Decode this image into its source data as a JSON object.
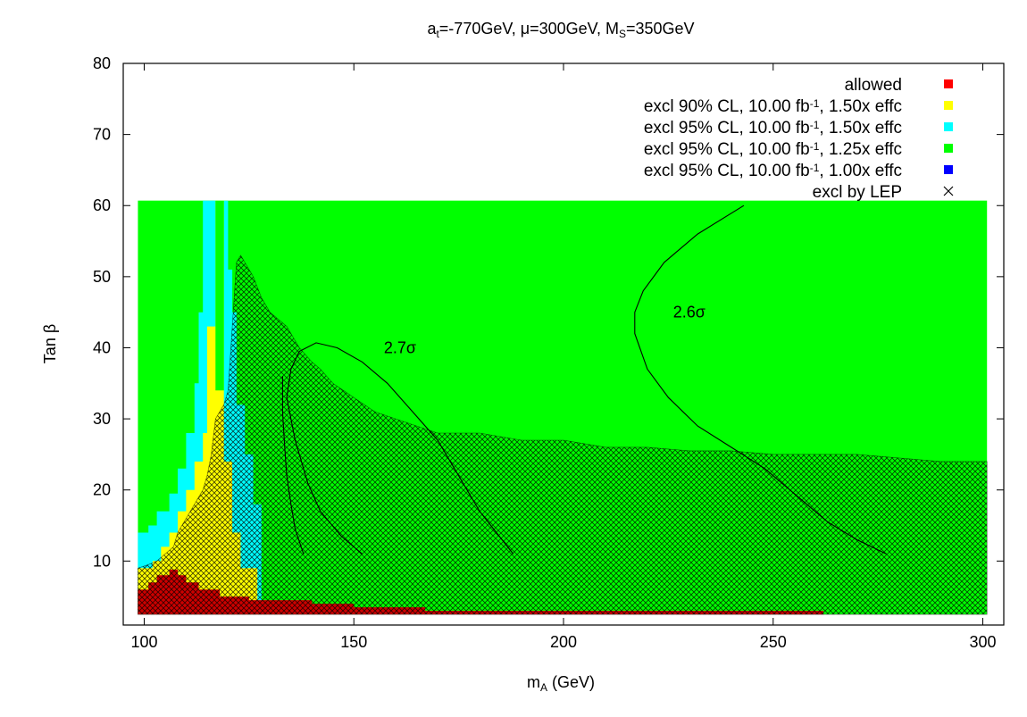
{
  "chart_data": {
    "type": "heatmap",
    "title": {
      "parts": [
        {
          "t": "a",
          "s": "n"
        },
        {
          "t": "t",
          "s": "sub"
        },
        {
          "t": "=-770GeV, μ=300GeV, M",
          "s": "n"
        },
        {
          "t": "S",
          "s": "sub"
        },
        {
          "t": "=350GeV",
          "s": "n"
        }
      ]
    },
    "xlabel": {
      "parts": [
        {
          "t": "m",
          "s": "n"
        },
        {
          "t": "A",
          "s": "sub"
        },
        {
          "t": " (GeV)",
          "s": "n"
        }
      ]
    },
    "ylabel": "Tan β",
    "xlim": [
      95,
      305
    ],
    "ylim": [
      1,
      80
    ],
    "xticks": [
      "100",
      "150",
      "200",
      "250",
      "300"
    ],
    "yticks": [
      "10",
      "20",
      "30",
      "40",
      "50",
      "60",
      "70",
      "80"
    ],
    "legend_position": "top-right",
    "legend": [
      {
        "label": {
          "parts": [
            {
              "t": "allowed",
              "s": "n"
            }
          ]
        },
        "marker": "square",
        "color": "#ff0000"
      },
      {
        "label": {
          "parts": [
            {
              "t": "excl 90% CL, 10.00 fb",
              "s": "n"
            },
            {
              "t": "-1",
              "s": "sup"
            },
            {
              "t": ", 1.50x effc",
              "s": "n"
            }
          ]
        },
        "marker": "square",
        "color": "#ffff00"
      },
      {
        "label": {
          "parts": [
            {
              "t": "excl 95% CL, 10.00 fb",
              "s": "n"
            },
            {
              "t": "-1",
              "s": "sup"
            },
            {
              "t": ", 1.50x effc",
              "s": "n"
            }
          ]
        },
        "marker": "square",
        "color": "#00ffff"
      },
      {
        "label": {
          "parts": [
            {
              "t": "excl 95% CL, 10.00 fb",
              "s": "n"
            },
            {
              "t": "-1",
              "s": "sup"
            },
            {
              "t": ", 1.25x effc",
              "s": "n"
            }
          ]
        },
        "marker": "square",
        "color": "#00ff00"
      },
      {
        "label": {
          "parts": [
            {
              "t": "excl 95% CL, 10.00 fb",
              "s": "n"
            },
            {
              "t": "-1",
              "s": "sup"
            },
            {
              "t": ", 1.00x effc",
              "s": "n"
            }
          ]
        },
        "marker": "square",
        "color": "#0000ff"
      },
      {
        "label": {
          "parts": [
            {
              "t": "excl by LEP",
              "s": "n"
            }
          ]
        },
        "marker": "cross",
        "color": "#000000"
      }
    ],
    "region_extent": {
      "x": [
        98.5,
        301
      ],
      "y": [
        2.5,
        60.7
      ]
    },
    "background_region_color": "#00ff00",
    "regions": [
      {
        "name": "cyan",
        "color": "#00ffff",
        "points": [
          [
            98.5,
            14
          ],
          [
            101,
            14
          ],
          [
            101,
            15
          ],
          [
            103,
            15
          ],
          [
            103,
            17
          ],
          [
            106,
            17
          ],
          [
            106,
            19.5
          ],
          [
            108,
            19.5
          ],
          [
            108,
            23
          ],
          [
            110,
            23
          ],
          [
            110,
            28
          ],
          [
            112,
            28
          ],
          [
            112,
            35
          ],
          [
            113,
            35
          ],
          [
            113,
            45
          ],
          [
            114,
            45
          ],
          [
            114,
            60.7
          ],
          [
            120,
            60.7
          ],
          [
            120,
            51
          ],
          [
            121,
            51
          ],
          [
            121,
            45
          ],
          [
            122,
            45
          ],
          [
            122,
            32
          ],
          [
            124,
            32
          ],
          [
            124,
            25
          ],
          [
            126,
            25
          ],
          [
            126,
            18
          ],
          [
            128,
            18
          ],
          [
            128,
            3
          ],
          [
            98.5,
            3
          ]
        ]
      },
      {
        "name": "yellow",
        "color": "#ffff00",
        "points": [
          [
            98.5,
            9
          ],
          [
            102,
            9
          ],
          [
            102,
            10
          ],
          [
            104,
            10
          ],
          [
            104,
            12
          ],
          [
            106,
            12
          ],
          [
            106,
            14
          ],
          [
            108,
            14
          ],
          [
            108,
            17
          ],
          [
            110,
            17
          ],
          [
            110,
            20
          ],
          [
            112,
            20
          ],
          [
            112,
            24
          ],
          [
            114,
            24
          ],
          [
            114,
            28
          ],
          [
            115,
            28
          ],
          [
            115,
            43
          ],
          [
            117,
            43
          ],
          [
            117,
            60.7
          ],
          [
            119,
            60.7
          ],
          [
            119,
            24
          ],
          [
            121,
            24
          ],
          [
            121,
            14
          ],
          [
            123,
            14
          ],
          [
            123,
            9
          ],
          [
            127,
            9
          ],
          [
            127,
            3
          ],
          [
            98.5,
            3
          ]
        ]
      },
      {
        "name": "green-fill",
        "color": "#00ff00",
        "points": [
          [
            117,
            60.7
          ],
          [
            119,
            60.7
          ],
          [
            119,
            34
          ],
          [
            117,
            34
          ]
        ]
      },
      {
        "name": "red",
        "color": "#cc0000",
        "points": [
          [
            98.5,
            2.5
          ],
          [
            98.5,
            6
          ],
          [
            101,
            6
          ],
          [
            101,
            7
          ],
          [
            103,
            7
          ],
          [
            103,
            8
          ],
          [
            106,
            8
          ],
          [
            106,
            8.8
          ],
          [
            108,
            8.8
          ],
          [
            108,
            8
          ],
          [
            110,
            8
          ],
          [
            110,
            7
          ],
          [
            113,
            7
          ],
          [
            113,
            6
          ],
          [
            118,
            6
          ],
          [
            118,
            5
          ],
          [
            125,
            5
          ],
          [
            125,
            4.5
          ],
          [
            140,
            4.5
          ],
          [
            140,
            4
          ],
          [
            150,
            4
          ],
          [
            150,
            3.5
          ],
          [
            167,
            3.5
          ],
          [
            167,
            3
          ],
          [
            262,
            3
          ],
          [
            262,
            2.5
          ]
        ]
      }
    ],
    "lep_exclusion_boundary": [
      [
        98.5,
        9
      ],
      [
        101,
        9.5
      ],
      [
        103,
        10
      ],
      [
        105,
        11
      ],
      [
        107,
        12
      ],
      [
        108,
        14
      ],
      [
        109,
        15
      ],
      [
        110,
        16
      ],
      [
        111,
        17
      ],
      [
        112,
        18
      ],
      [
        113,
        19
      ],
      [
        114,
        20
      ],
      [
        115,
        22
      ],
      [
        116,
        25
      ],
      [
        117,
        30
      ],
      [
        118,
        31
      ],
      [
        119,
        32
      ],
      [
        120,
        34
      ],
      [
        121,
        43
      ],
      [
        122,
        52
      ],
      [
        123,
        53
      ],
      [
        124,
        52
      ],
      [
        126,
        50
      ],
      [
        128,
        47
      ],
      [
        130,
        45
      ],
      [
        132,
        44
      ],
      [
        134,
        43
      ],
      [
        137,
        40
      ],
      [
        140,
        38
      ],
      [
        142,
        37
      ],
      [
        145,
        35
      ],
      [
        150,
        33
      ],
      [
        155,
        31
      ],
      [
        160,
        30
      ],
      [
        165,
        29
      ],
      [
        170,
        28
      ],
      [
        180,
        28
      ],
      [
        190,
        27
      ],
      [
        200,
        27
      ],
      [
        210,
        26
      ],
      [
        220,
        26
      ],
      [
        230,
        25.5
      ],
      [
        240,
        25.5
      ],
      [
        250,
        25
      ],
      [
        260,
        25
      ],
      [
        270,
        25
      ],
      [
        280,
        24.5
      ],
      [
        290,
        24
      ],
      [
        301,
        24
      ]
    ],
    "contours": [
      {
        "label": "2.6σ",
        "label_pos": [
          230,
          45
        ],
        "points": [
          [
            243,
            60
          ],
          [
            232,
            56
          ],
          [
            224,
            52
          ],
          [
            219,
            48
          ],
          [
            217,
            45
          ],
          [
            217,
            42
          ],
          [
            220,
            37
          ],
          [
            225,
            33
          ],
          [
            232,
            29
          ],
          [
            240,
            26
          ],
          [
            248,
            23
          ],
          [
            256,
            19
          ],
          [
            263,
            15.5
          ],
          [
            270,
            13
          ],
          [
            277,
            11
          ]
        ]
      },
      {
        "label": "2.7σ",
        "label_pos": [
          161,
          40
        ],
        "points": [
          [
            152,
            11
          ],
          [
            147,
            13.5
          ],
          [
            142,
            17
          ],
          [
            139,
            21
          ],
          [
            136,
            27
          ],
          [
            134,
            33
          ],
          [
            135,
            37
          ],
          [
            137,
            39.5
          ],
          [
            141,
            40.7
          ],
          [
            146,
            40
          ],
          [
            152,
            38
          ],
          [
            158,
            35
          ],
          [
            164,
            31
          ],
          [
            170,
            27
          ],
          [
            175,
            22
          ],
          [
            180,
            17
          ],
          [
            184,
            14
          ],
          [
            188,
            11
          ]
        ]
      },
      {
        "label": "",
        "label_pos": null,
        "points": [
          [
            133,
            36
          ],
          [
            133,
            31
          ],
          [
            133.5,
            26
          ],
          [
            134,
            22
          ],
          [
            135,
            18
          ],
          [
            136,
            14.5
          ],
          [
            138,
            11
          ]
        ]
      }
    ]
  }
}
